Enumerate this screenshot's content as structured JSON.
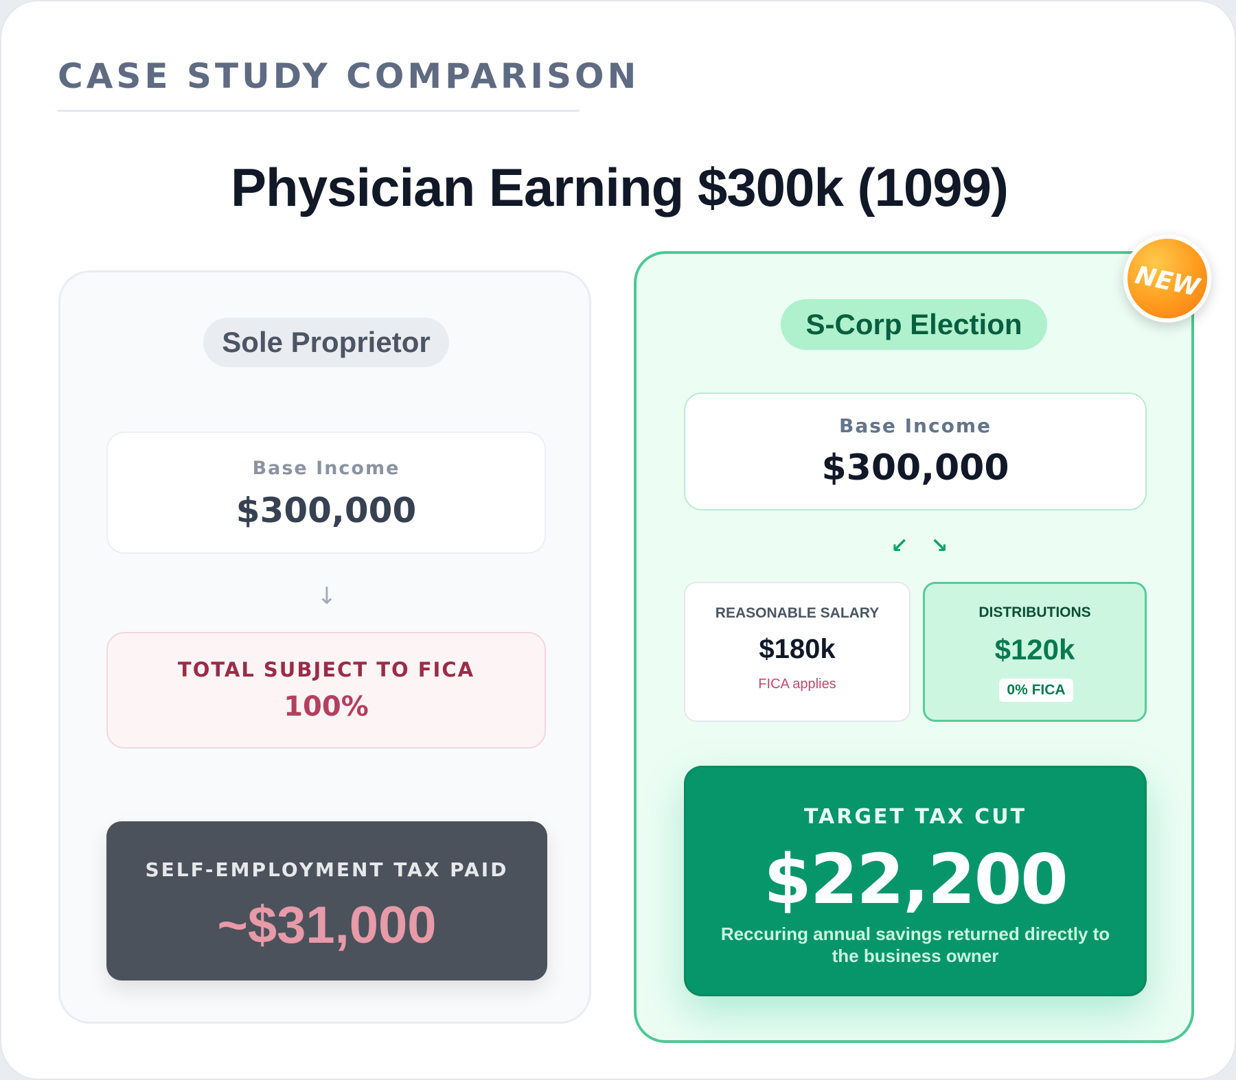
{
  "header": {
    "eyebrow": "CASE STUDY COMPARISON",
    "title": "Physician Earning $300k (1099)"
  },
  "left": {
    "pill": "Sole Proprietor",
    "base_income_label": "Base Income",
    "base_income_value": "$300,000",
    "arrow": "↓",
    "fica_label": "TOTAL SUBJECT TO FICA",
    "fica_value": "100%",
    "se_tax_label": "SELF-EMPLOYMENT TAX PAID",
    "se_tax_value": "~$31,000"
  },
  "right": {
    "badge": "NEW",
    "pill": "S-Corp Election",
    "base_income_label": "Base Income",
    "base_income_value": "$300,000",
    "arrow_left": "↙",
    "arrow_right": "↘",
    "salary_label": "REASONABLE SALARY",
    "salary_value": "$180k",
    "salary_note": "FICA applies",
    "dist_label": "DISTRIBUTIONS",
    "dist_value": "$120k",
    "dist_badge": "0% FICA",
    "target_label": "TARGET TAX CUT",
    "target_value": "$22,200",
    "target_sub": "Reccuring annual savings returned directly to the business owner"
  },
  "colors": {
    "accent_green": "#06966a",
    "panel_green_border": "#4bc894",
    "dark_box": "#4b525c",
    "tax_red": "#e79aa7"
  }
}
